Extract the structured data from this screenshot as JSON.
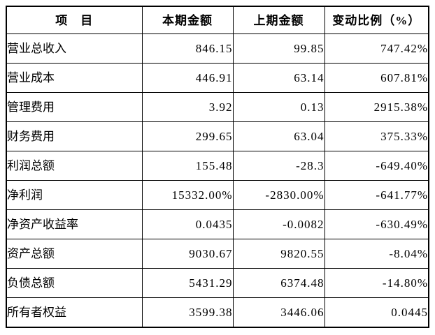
{
  "colors": {
    "background": "#ffffff",
    "border": "#000000",
    "text": "#000000"
  },
  "chart_data": {
    "type": "table",
    "columns": [
      "项　目",
      "本期金额",
      "上期金额",
      "变动比例（%）"
    ],
    "rows": [
      [
        "营业总收入",
        "846.15",
        "99.85",
        "747.42%"
      ],
      [
        "营业成本",
        "446.91",
        "63.14",
        "607.81%"
      ],
      [
        "管理费用",
        "3.92",
        "0.13",
        "2915.38%"
      ],
      [
        "财务费用",
        "299.65",
        "63.04",
        "375.33%"
      ],
      [
        "利润总额",
        "155.48",
        "-28.3",
        "-649.40%"
      ],
      [
        "净利润",
        "15332.00%",
        "-2830.00%",
        "-641.77%"
      ],
      [
        "净资产收益率",
        "0.0435",
        "-0.0082",
        "-630.49%"
      ],
      [
        "资产总额",
        "9030.67",
        "9820.55",
        "-8.04%"
      ],
      [
        "负债总额",
        "5431.29",
        "6374.48",
        "-14.80%"
      ],
      [
        "所有者权益",
        "3599.38",
        "3446.06",
        "0.0445"
      ]
    ]
  }
}
